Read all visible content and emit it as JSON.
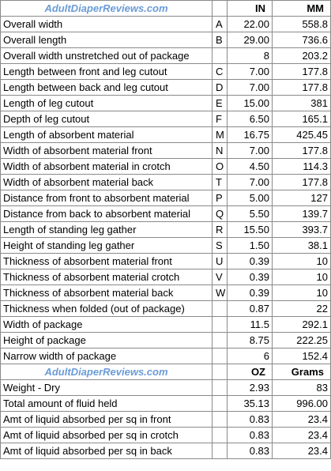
{
  "header1": {
    "brand": "AdultDiaperReviews.com",
    "col1": "IN",
    "col2": "MM"
  },
  "rows1": [
    {
      "label": "Overall width",
      "code": "A",
      "v1": "22.00",
      "v2": "558.8"
    },
    {
      "label": "Overall length",
      "code": "B",
      "v1": "29.00",
      "v2": "736.6"
    },
    {
      "label": "Overall width unstretched out of package",
      "code": "",
      "v1": "8",
      "v2": "203.2"
    },
    {
      "label": "Length between front and leg cutout",
      "code": "C",
      "v1": "7.00",
      "v2": "177.8"
    },
    {
      "label": "Length between back and leg cutout",
      "code": "D",
      "v1": "7.00",
      "v2": "177.8"
    },
    {
      "label": "Length of leg cutout",
      "code": "E",
      "v1": "15.00",
      "v2": "381"
    },
    {
      "label": "Depth of leg cutout",
      "code": "F",
      "v1": "6.50",
      "v2": "165.1"
    },
    {
      "label": "Length of absorbent material",
      "code": "M",
      "v1": "16.75",
      "v2": "425.45"
    },
    {
      "label": "Width of absorbent material front",
      "code": "N",
      "v1": "7.00",
      "v2": "177.8"
    },
    {
      "label": "Width of absorbent material in crotch",
      "code": "O",
      "v1": "4.50",
      "v2": "114.3"
    },
    {
      "label": "Width of absorbent material back",
      "code": "T",
      "v1": "7.00",
      "v2": "177.8"
    },
    {
      "label": "Distance from front to absorbent material",
      "code": "P",
      "v1": "5.00",
      "v2": "127"
    },
    {
      "label": "Distance from back to absorbent material",
      "code": "Q",
      "v1": "5.50",
      "v2": "139.7"
    },
    {
      "label": "Length of standing leg gather",
      "code": "R",
      "v1": "15.50",
      "v2": "393.7"
    },
    {
      "label": "Height of standing leg gather",
      "code": "S",
      "v1": "1.50",
      "v2": "38.1"
    },
    {
      "label": "Thickness of absorbent material front",
      "code": "U",
      "v1": "0.39",
      "v2": "10"
    },
    {
      "label": "Thickness of absorbent material crotch",
      "code": "V",
      "v1": "0.39",
      "v2": "10"
    },
    {
      "label": "Thickness of absorbent material back",
      "code": "W",
      "v1": "0.39",
      "v2": "10"
    },
    {
      "label": "Thickness when folded (out of package)",
      "code": "",
      "v1": "0.87",
      "v2": "22"
    },
    {
      "label": "Width of package",
      "code": "",
      "v1": "11.5",
      "v2": "292.1"
    },
    {
      "label": "Height of package",
      "code": "",
      "v1": "8.75",
      "v2": "222.25"
    },
    {
      "label": "Narrow width of package",
      "code": "",
      "v1": "6",
      "v2": "152.4"
    }
  ],
  "header2": {
    "brand": "AdultDiaperReviews.com",
    "col1": "OZ",
    "col2": "Grams"
  },
  "rows2": [
    {
      "label": "Weight - Dry",
      "code": "",
      "v1": "2.93",
      "v2": "83"
    },
    {
      "label": "Total amount of fluid held",
      "code": "",
      "v1": "35.13",
      "v2": "996.00"
    },
    {
      "label": "Amt of liquid absorbed per sq in front",
      "code": "",
      "v1": "0.83",
      "v2": "23.4"
    },
    {
      "label": "Amt of liquid absorbed per sq in crotch",
      "code": "",
      "v1": "0.83",
      "v2": "23.4"
    },
    {
      "label": "Amt of liquid absorbed per sq in back",
      "code": "",
      "v1": "0.83",
      "v2": "23.4"
    }
  ]
}
